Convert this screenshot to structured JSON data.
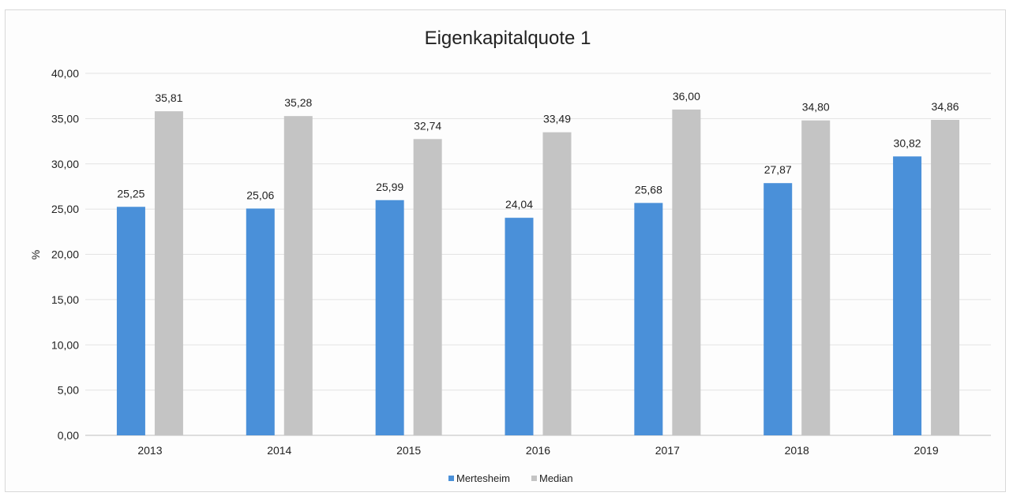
{
  "chart_data": {
    "type": "bar",
    "title": "Eigenkapitalquote 1",
    "xlabel": "",
    "ylabel": "%",
    "categories": [
      "2013",
      "2014",
      "2015",
      "2016",
      "2017",
      "2018",
      "2019"
    ],
    "series": [
      {
        "name": "Mertesheim",
        "color": "#4a90d9",
        "values": [
          25.25,
          25.06,
          25.99,
          24.04,
          25.68,
          27.87,
          30.82
        ],
        "labels": [
          "25,25",
          "25,06",
          "25,99",
          "24,04",
          "25,68",
          "27,87",
          "30,82"
        ]
      },
      {
        "name": "Median",
        "color": "#c4c4c4",
        "values": [
          35.81,
          35.28,
          32.74,
          33.49,
          36.0,
          34.8,
          34.86
        ],
        "labels": [
          "35,81",
          "35,28",
          "32,74",
          "33,49",
          "36,00",
          "34,80",
          "34,86"
        ]
      }
    ],
    "ylim": [
      0,
      40
    ],
    "yticks": [
      "0,00",
      "5,00",
      "10,00",
      "15,00",
      "20,00",
      "25,00",
      "30,00",
      "35,00",
      "40,00"
    ],
    "grid": true,
    "legend": "bottom-center"
  }
}
